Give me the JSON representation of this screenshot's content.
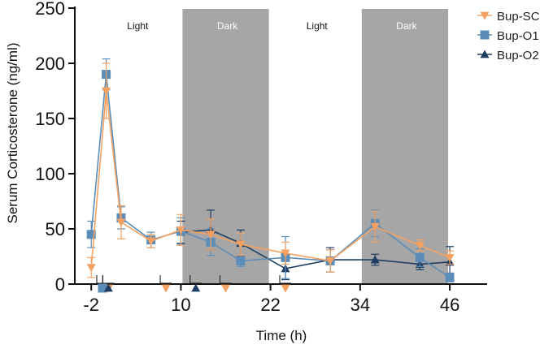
{
  "chart_data": {
    "type": "line",
    "xlabel": "Time (h)",
    "ylabel": "Serum Corticosterone (ng/ml)",
    "xlim": [
      -4.2,
      51
    ],
    "ylim": [
      0,
      250
    ],
    "x_ticks": [
      -2,
      10,
      22,
      34,
      46
    ],
    "x_tick_labels": [
      "-2",
      "10",
      "22",
      "34",
      "46"
    ],
    "y_ticks": [
      0,
      50,
      100,
      150,
      200,
      250
    ],
    "y_tick_labels": [
      "0",
      "50",
      "100",
      "150",
      "200",
      "250"
    ],
    "shaded_regions": [
      {
        "label": "Light",
        "x_start": -2,
        "x_end": 10,
        "shaded": false
      },
      {
        "label": "Dark",
        "x_start": 10,
        "x_end": 22,
        "shaded": true
      },
      {
        "label": "Light",
        "x_start": 22,
        "x_end": 34,
        "shaded": false
      },
      {
        "label": "Dark",
        "x_start": 34,
        "x_end": 46,
        "shaded": true
      }
    ],
    "legend_position": "top-right",
    "series": [
      {
        "name": "Bup-SC",
        "color": "#F4A161",
        "marker": "triangle-down",
        "points": [
          {
            "x": -2,
            "y": 15,
            "err": 9
          },
          {
            "x": 0,
            "y": 175,
            "err": 25
          },
          {
            "x": 2,
            "y": 56,
            "err": 15
          },
          {
            "x": 6,
            "y": 39,
            "err": 6
          },
          {
            "x": 10,
            "y": 49,
            "err": 14
          },
          {
            "x": 14,
            "y": 45,
            "err": 14
          },
          {
            "x": 18,
            "y": 36,
            "err": 10
          },
          {
            "x": 24,
            "y": 28,
            "err": 10
          },
          {
            "x": 30,
            "y": 21,
            "err": 10
          },
          {
            "x": 36,
            "y": 52,
            "err": 14
          },
          {
            "x": 42,
            "y": 35,
            "err": 5
          },
          {
            "x": 46,
            "y": 24,
            "err": 6
          }
        ],
        "arrows": [
          0.3,
          8,
          16,
          24
        ]
      },
      {
        "name": "Bup-O1",
        "color": "#5B8DB8",
        "marker": "square",
        "points": [
          {
            "x": -2,
            "y": 45,
            "err": 12
          },
          {
            "x": 0,
            "y": 190,
            "err": 14
          },
          {
            "x": 2,
            "y": 60,
            "err": 10
          },
          {
            "x": 6,
            "y": 40,
            "err": 7
          },
          {
            "x": 10,
            "y": 48,
            "err": 12
          },
          {
            "x": 14,
            "y": 38,
            "err": 12
          },
          {
            "x": 18,
            "y": 21,
            "err": 5
          },
          {
            "x": 24,
            "y": 24,
            "err": 19
          },
          {
            "x": 30,
            "y": 21,
            "err": 10
          },
          {
            "x": 36,
            "y": 55,
            "err": 12
          },
          {
            "x": 42,
            "y": 24,
            "err": 8
          },
          {
            "x": 46,
            "y": 6,
            "err": 4
          }
        ],
        "arrows": [
          -0.5
        ]
      },
      {
        "name": "Bup-O2",
        "color": "#1F3D63",
        "marker": "triangle-up",
        "points": [
          {
            "x": 10,
            "y": 47,
            "err": 10
          },
          {
            "x": 14,
            "y": 49,
            "err": 18
          },
          {
            "x": 18,
            "y": 37,
            "err": 12
          },
          {
            "x": 24,
            "y": 14,
            "err": 10
          },
          {
            "x": 30,
            "y": 22,
            "err": 11
          },
          {
            "x": 36,
            "y": 22,
            "err": 5
          },
          {
            "x": 42,
            "y": 18,
            "err": 5
          },
          {
            "x": 46,
            "y": 20,
            "err": 14
          }
        ],
        "arrows": [
          0.3,
          12
        ]
      }
    ]
  }
}
